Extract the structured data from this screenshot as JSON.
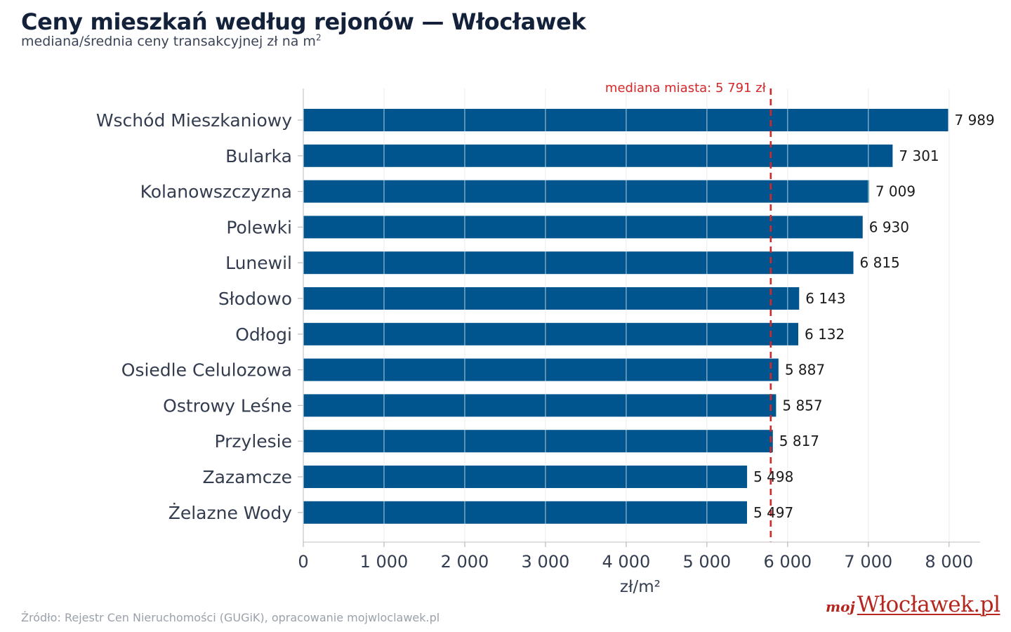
{
  "header": {
    "title": "Ceny mieszkań według rejonów — Włocławek",
    "subtitle": "mediana/średnia ceny transakcyjnej zł na m",
    "subtitle_sup": "2"
  },
  "chart_data": {
    "type": "bar",
    "orientation": "horizontal",
    "categories": [
      "Wschód Mieszkaniowy",
      "Bularka",
      "Kolanowszczyzna",
      "Polewki",
      "Lunewil",
      "Słodowo",
      "Odłogi",
      "Osiedle Celulozowa",
      "Ostrowy Leśne",
      "Przylesie",
      "Zazamcze",
      "Żelazne Wody"
    ],
    "values": [
      7989,
      7301,
      7009,
      6930,
      6815,
      6143,
      6132,
      5887,
      5857,
      5817,
      5498,
      5497
    ],
    "value_labels": [
      "7 989",
      "7 301",
      "7 009",
      "6 930",
      "6 815",
      "6 143",
      "6 132",
      "5 887",
      "5 857",
      "5 817",
      "5 498",
      "5 497"
    ],
    "xlabel": "zł/m²",
    "xlim": [
      0,
      8400
    ],
    "xticks": [
      0,
      1000,
      2000,
      3000,
      4000,
      5000,
      6000,
      7000,
      8000
    ],
    "xtick_labels": [
      "0",
      "1 000",
      "2 000",
      "3 000",
      "4 000",
      "5 000",
      "6 000",
      "7 000",
      "8 000"
    ],
    "grid": "vertical",
    "reference_line": {
      "value": 5791,
      "label": "mediana miasta: 5 791 zł",
      "color": "#d62728",
      "style": "dashed"
    },
    "bar_color": "#00558f"
  },
  "footer": {
    "source": "Źródło: Rejestr Cen Nieruchomości (GUGiK), opracowanie mojwloclawek.pl"
  },
  "logo": {
    "prefix": "moj",
    "name": "Włocławek.pl"
  }
}
